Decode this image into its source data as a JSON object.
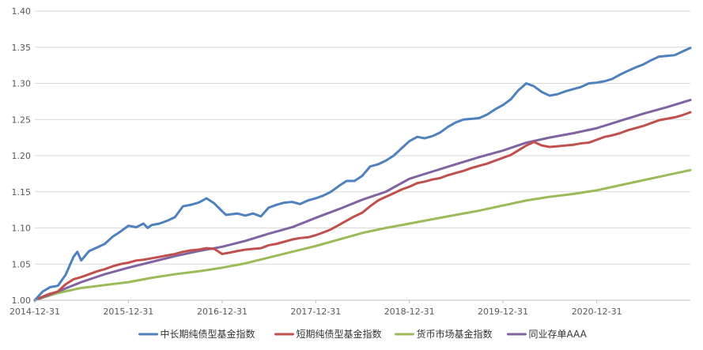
{
  "chart_data": {
    "type": "line",
    "title": "",
    "xlabel": "",
    "ylabel": "",
    "ylim": [
      1.0,
      1.4
    ],
    "y_ticks": [
      "1.00",
      "1.05",
      "1.10",
      "1.15",
      "1.20",
      "1.25",
      "1.30",
      "1.35",
      "1.40"
    ],
    "x_tick_labels": [
      "2014-12-31",
      "2015-12-31",
      "2016-12-31",
      "2017-12-31",
      "2018-12-31",
      "2019-12-31",
      "2020-12-31"
    ],
    "x_range": [
      "2014-12-31",
      "2021-12-31"
    ],
    "grid": "horizontal",
    "legend_position": "bottom",
    "series": [
      {
        "name": "中长期纯债型基金指数",
        "color": "#4f81bd",
        "points": [
          [
            "2014-12-31",
            1.0
          ],
          [
            "2015-01-31",
            1.012
          ],
          [
            "2015-02-28",
            1.018
          ],
          [
            "2015-03-31",
            1.02
          ],
          [
            "2015-04-30",
            1.035
          ],
          [
            "2015-05-31",
            1.06
          ],
          [
            "2015-06-15",
            1.067
          ],
          [
            "2015-06-30",
            1.055
          ],
          [
            "2015-07-31",
            1.068
          ],
          [
            "2015-08-31",
            1.073
          ],
          [
            "2015-09-30",
            1.078
          ],
          [
            "2015-10-31",
            1.088
          ],
          [
            "2015-11-30",
            1.095
          ],
          [
            "2015-12-31",
            1.103
          ],
          [
            "2016-01-31",
            1.101
          ],
          [
            "2016-02-28",
            1.106
          ],
          [
            "2016-03-15",
            1.1
          ],
          [
            "2016-03-31",
            1.104
          ],
          [
            "2016-04-30",
            1.106
          ],
          [
            "2016-05-31",
            1.11
          ],
          [
            "2016-06-30",
            1.115
          ],
          [
            "2016-07-31",
            1.13
          ],
          [
            "2016-08-31",
            1.132
          ],
          [
            "2016-09-30",
            1.135
          ],
          [
            "2016-10-31",
            1.141
          ],
          [
            "2016-11-30",
            1.134
          ],
          [
            "2016-12-31",
            1.123
          ],
          [
            "2017-01-15",
            1.118
          ],
          [
            "2017-02-28",
            1.12
          ],
          [
            "2017-03-31",
            1.117
          ],
          [
            "2017-04-30",
            1.12
          ],
          [
            "2017-05-31",
            1.116
          ],
          [
            "2017-06-30",
            1.128
          ],
          [
            "2017-07-31",
            1.132
          ],
          [
            "2017-08-31",
            1.135
          ],
          [
            "2017-09-30",
            1.136
          ],
          [
            "2017-10-31",
            1.133
          ],
          [
            "2017-11-30",
            1.138
          ],
          [
            "2017-12-31",
            1.141
          ],
          [
            "2018-01-31",
            1.145
          ],
          [
            "2018-02-28",
            1.15
          ],
          [
            "2018-03-31",
            1.158
          ],
          [
            "2018-04-30",
            1.165
          ],
          [
            "2018-05-31",
            1.165
          ],
          [
            "2018-06-30",
            1.172
          ],
          [
            "2018-07-31",
            1.185
          ],
          [
            "2018-08-31",
            1.188
          ],
          [
            "2018-09-30",
            1.193
          ],
          [
            "2018-10-31",
            1.2
          ],
          [
            "2018-11-30",
            1.21
          ],
          [
            "2018-12-31",
            1.22
          ],
          [
            "2019-01-31",
            1.226
          ],
          [
            "2019-02-28",
            1.224
          ],
          [
            "2019-03-31",
            1.227
          ],
          [
            "2019-04-30",
            1.232
          ],
          [
            "2019-05-31",
            1.24
          ],
          [
            "2019-06-30",
            1.246
          ],
          [
            "2019-07-31",
            1.25
          ],
          [
            "2019-08-31",
            1.251
          ],
          [
            "2019-09-30",
            1.252
          ],
          [
            "2019-10-31",
            1.257
          ],
          [
            "2019-11-30",
            1.264
          ],
          [
            "2019-12-31",
            1.27
          ],
          [
            "2020-01-31",
            1.278
          ],
          [
            "2020-02-28",
            1.29
          ],
          [
            "2020-03-31",
            1.3
          ],
          [
            "2020-04-30",
            1.296
          ],
          [
            "2020-05-31",
            1.288
          ],
          [
            "2020-06-30",
            1.283
          ],
          [
            "2020-07-31",
            1.285
          ],
          [
            "2020-08-31",
            1.289
          ],
          [
            "2020-09-30",
            1.292
          ],
          [
            "2020-10-31",
            1.295
          ],
          [
            "2020-11-30",
            1.3
          ],
          [
            "2020-12-31",
            1.301
          ],
          [
            "2021-01-31",
            1.303
          ],
          [
            "2021-02-28",
            1.306
          ],
          [
            "2021-03-31",
            1.312
          ],
          [
            "2021-04-30",
            1.317
          ],
          [
            "2021-05-31",
            1.322
          ],
          [
            "2021-06-30",
            1.326
          ],
          [
            "2021-07-31",
            1.332
          ],
          [
            "2021-08-31",
            1.337
          ],
          [
            "2021-09-30",
            1.338
          ],
          [
            "2021-10-31",
            1.339
          ],
          [
            "2021-11-30",
            1.344
          ],
          [
            "2021-12-31",
            1.349
          ]
        ]
      },
      {
        "name": "短期纯债型基金指数",
        "color": "#c0504d",
        "points": [
          [
            "2014-12-31",
            1.0
          ],
          [
            "2015-01-31",
            1.005
          ],
          [
            "2015-02-28",
            1.009
          ],
          [
            "2015-03-31",
            1.012
          ],
          [
            "2015-04-30",
            1.022
          ],
          [
            "2015-05-31",
            1.029
          ],
          [
            "2015-06-30",
            1.032
          ],
          [
            "2015-07-31",
            1.036
          ],
          [
            "2015-08-31",
            1.04
          ],
          [
            "2015-09-30",
            1.043
          ],
          [
            "2015-10-31",
            1.047
          ],
          [
            "2015-11-30",
            1.05
          ],
          [
            "2015-12-31",
            1.052
          ],
          [
            "2016-01-31",
            1.055
          ],
          [
            "2016-02-28",
            1.056
          ],
          [
            "2016-03-31",
            1.058
          ],
          [
            "2016-04-30",
            1.06
          ],
          [
            "2016-05-31",
            1.062
          ],
          [
            "2016-06-30",
            1.064
          ],
          [
            "2016-07-31",
            1.067
          ],
          [
            "2016-08-31",
            1.069
          ],
          [
            "2016-09-30",
            1.07
          ],
          [
            "2016-10-31",
            1.072
          ],
          [
            "2016-11-30",
            1.071
          ],
          [
            "2016-12-31",
            1.064
          ],
          [
            "2017-01-31",
            1.066
          ],
          [
            "2017-02-28",
            1.068
          ],
          [
            "2017-03-31",
            1.07
          ],
          [
            "2017-04-30",
            1.071
          ],
          [
            "2017-05-31",
            1.072
          ],
          [
            "2017-06-30",
            1.076
          ],
          [
            "2017-07-31",
            1.078
          ],
          [
            "2017-08-31",
            1.081
          ],
          [
            "2017-09-30",
            1.084
          ],
          [
            "2017-10-31",
            1.086
          ],
          [
            "2017-11-30",
            1.087
          ],
          [
            "2017-12-31",
            1.09
          ],
          [
            "2018-01-31",
            1.094
          ],
          [
            "2018-02-28",
            1.098
          ],
          [
            "2018-03-31",
            1.104
          ],
          [
            "2018-04-30",
            1.11
          ],
          [
            "2018-05-31",
            1.116
          ],
          [
            "2018-06-30",
            1.121
          ],
          [
            "2018-07-31",
            1.13
          ],
          [
            "2018-08-31",
            1.138
          ],
          [
            "2018-09-30",
            1.143
          ],
          [
            "2018-10-31",
            1.148
          ],
          [
            "2018-11-30",
            1.153
          ],
          [
            "2018-12-31",
            1.157
          ],
          [
            "2019-01-31",
            1.162
          ],
          [
            "2019-02-28",
            1.164
          ],
          [
            "2019-03-31",
            1.167
          ],
          [
            "2019-04-30",
            1.169
          ],
          [
            "2019-05-31",
            1.173
          ],
          [
            "2019-06-30",
            1.176
          ],
          [
            "2019-07-31",
            1.179
          ],
          [
            "2019-08-31",
            1.183
          ],
          [
            "2019-09-30",
            1.186
          ],
          [
            "2019-10-31",
            1.189
          ],
          [
            "2019-11-30",
            1.193
          ],
          [
            "2019-12-31",
            1.197
          ],
          [
            "2020-01-31",
            1.201
          ],
          [
            "2020-02-28",
            1.207
          ],
          [
            "2020-03-31",
            1.214
          ],
          [
            "2020-04-30",
            1.219
          ],
          [
            "2020-05-31",
            1.214
          ],
          [
            "2020-06-30",
            1.212
          ],
          [
            "2020-07-31",
            1.213
          ],
          [
            "2020-08-31",
            1.214
          ],
          [
            "2020-09-30",
            1.215
          ],
          [
            "2020-10-31",
            1.217
          ],
          [
            "2020-11-30",
            1.218
          ],
          [
            "2020-12-31",
            1.222
          ],
          [
            "2021-01-31",
            1.226
          ],
          [
            "2021-02-28",
            1.228
          ],
          [
            "2021-03-31",
            1.231
          ],
          [
            "2021-04-30",
            1.235
          ],
          [
            "2021-05-31",
            1.238
          ],
          [
            "2021-06-30",
            1.241
          ],
          [
            "2021-07-31",
            1.245
          ],
          [
            "2021-08-31",
            1.249
          ],
          [
            "2021-09-30",
            1.251
          ],
          [
            "2021-10-31",
            1.253
          ],
          [
            "2021-11-30",
            1.256
          ],
          [
            "2021-12-31",
            1.26
          ]
        ]
      },
      {
        "name": "货币市场基金指数",
        "color": "#9bbb59",
        "points": [
          [
            "2014-12-31",
            1.0
          ],
          [
            "2015-03-31",
            1.01
          ],
          [
            "2015-06-30",
            1.017
          ],
          [
            "2015-09-30",
            1.021
          ],
          [
            "2015-12-31",
            1.025
          ],
          [
            "2016-03-31",
            1.031
          ],
          [
            "2016-06-30",
            1.036
          ],
          [
            "2016-09-30",
            1.04
          ],
          [
            "2016-12-31",
            1.045
          ],
          [
            "2017-03-31",
            1.051
          ],
          [
            "2017-06-30",
            1.059
          ],
          [
            "2017-09-30",
            1.067
          ],
          [
            "2017-12-31",
            1.075
          ],
          [
            "2018-03-31",
            1.084
          ],
          [
            "2018-06-30",
            1.093
          ],
          [
            "2018-09-30",
            1.1
          ],
          [
            "2018-12-31",
            1.106
          ],
          [
            "2019-03-31",
            1.112
          ],
          [
            "2019-06-30",
            1.118
          ],
          [
            "2019-09-30",
            1.124
          ],
          [
            "2019-12-31",
            1.131
          ],
          [
            "2020-03-31",
            1.138
          ],
          [
            "2020-06-30",
            1.143
          ],
          [
            "2020-09-30",
            1.147
          ],
          [
            "2020-12-31",
            1.152
          ],
          [
            "2021-03-31",
            1.159
          ],
          [
            "2021-06-30",
            1.166
          ],
          [
            "2021-09-30",
            1.173
          ],
          [
            "2021-12-31",
            1.18
          ]
        ]
      },
      {
        "name": "同业存单AAA",
        "color": "#8064a2",
        "points": [
          [
            "2014-12-31",
            1.0
          ],
          [
            "2015-03-31",
            1.012
          ],
          [
            "2015-06-30",
            1.025
          ],
          [
            "2015-09-30",
            1.036
          ],
          [
            "2015-12-31",
            1.045
          ],
          [
            "2016-03-31",
            1.053
          ],
          [
            "2016-06-30",
            1.061
          ],
          [
            "2016-09-30",
            1.068
          ],
          [
            "2016-12-31",
            1.074
          ],
          [
            "2017-03-31",
            1.082
          ],
          [
            "2017-06-30",
            1.092
          ],
          [
            "2017-09-30",
            1.101
          ],
          [
            "2017-12-31",
            1.114
          ],
          [
            "2018-03-31",
            1.126
          ],
          [
            "2018-06-30",
            1.139
          ],
          [
            "2018-09-30",
            1.15
          ],
          [
            "2018-12-31",
            1.168
          ],
          [
            "2019-03-31",
            1.178
          ],
          [
            "2019-06-30",
            1.188
          ],
          [
            "2019-09-30",
            1.198
          ],
          [
            "2019-12-31",
            1.207
          ],
          [
            "2020-03-31",
            1.218
          ],
          [
            "2020-06-30",
            1.225
          ],
          [
            "2020-09-30",
            1.231
          ],
          [
            "2020-12-31",
            1.238
          ],
          [
            "2021-03-31",
            1.248
          ],
          [
            "2021-06-30",
            1.258
          ],
          [
            "2021-09-30",
            1.267
          ],
          [
            "2021-12-31",
            1.277
          ]
        ]
      }
    ]
  }
}
